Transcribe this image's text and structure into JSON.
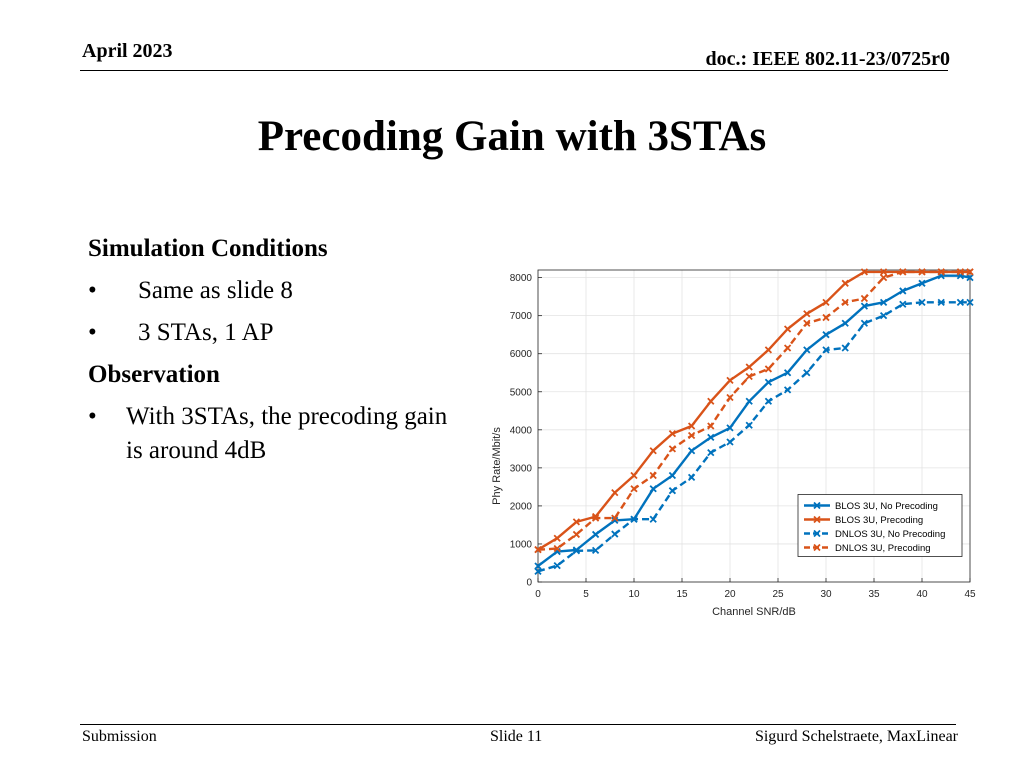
{
  "header": {
    "date": "April 2023",
    "doc": "doc.: IEEE 802.11-23/0725r0"
  },
  "title": "Precoding Gain with 3STAs",
  "body": {
    "heading1": "Simulation Conditions",
    "bullet1": "Same as slide 8",
    "bullet2": "3 STAs, 1 AP",
    "heading2": "Observation",
    "bullet3": "With 3STAs, the precoding gain is around 4dB",
    "bullet_char": "•"
  },
  "footer": {
    "left": "Submission",
    "center": "Slide 11",
    "right": "Sigurd Schelstraete, MaxLinear"
  },
  "chart_data": {
    "type": "line",
    "xlabel": "Channel SNR/dB",
    "ylabel": "Phy Rate/Mbit/s",
    "xlim": [
      0,
      45
    ],
    "ylim": [
      0,
      8200
    ],
    "xticks": [
      0,
      5,
      10,
      15,
      20,
      25,
      30,
      35,
      40,
      45
    ],
    "yticks": [
      0,
      1000,
      2000,
      3000,
      4000,
      5000,
      6000,
      7000,
      8000
    ],
    "grid": true,
    "legend_position": "lower-right",
    "x": [
      0,
      2,
      4,
      6,
      8,
      10,
      12,
      14,
      16,
      18,
      20,
      22,
      24,
      26,
      28,
      30,
      32,
      34,
      36,
      38,
      40,
      42,
      44,
      45
    ],
    "series": [
      {
        "name": "BLOS 3U, No Precoding",
        "color": "#0072BD",
        "dash": false,
        "values": [
          420,
          800,
          840,
          1250,
          1620,
          1650,
          2450,
          2800,
          3450,
          3800,
          4050,
          4750,
          5250,
          5500,
          6100,
          6500,
          6800,
          7250,
          7350,
          7650,
          7850,
          8050,
          8050,
          8000
        ]
      },
      {
        "name": "BLOS 3U, Precoding",
        "color": "#D95319",
        "dash": false,
        "values": [
          850,
          1150,
          1580,
          1720,
          2350,
          2800,
          3450,
          3900,
          4100,
          4750,
          5300,
          5650,
          6100,
          6650,
          7050,
          7350,
          7850,
          8150,
          8150,
          8150,
          8150,
          8150,
          8150,
          8150
        ]
      },
      {
        "name": "DNLOS 3U, No Precoding",
        "color": "#0072BD",
        "dash": true,
        "values": [
          280,
          430,
          820,
          830,
          1260,
          1650,
          1650,
          2400,
          2750,
          3400,
          3680,
          4120,
          4750,
          5050,
          5500,
          6100,
          6150,
          6800,
          7000,
          7300,
          7350,
          7350,
          7350,
          7350
        ]
      },
      {
        "name": "DNLOS 3U, Precoding",
        "color": "#D95319",
        "dash": true,
        "values": [
          850,
          880,
          1250,
          1680,
          1680,
          2450,
          2800,
          3500,
          3850,
          4100,
          4850,
          5400,
          5600,
          6150,
          6800,
          6950,
          7350,
          7450,
          8000,
          8150,
          8150,
          8150,
          8150,
          8150
        ]
      }
    ]
  }
}
